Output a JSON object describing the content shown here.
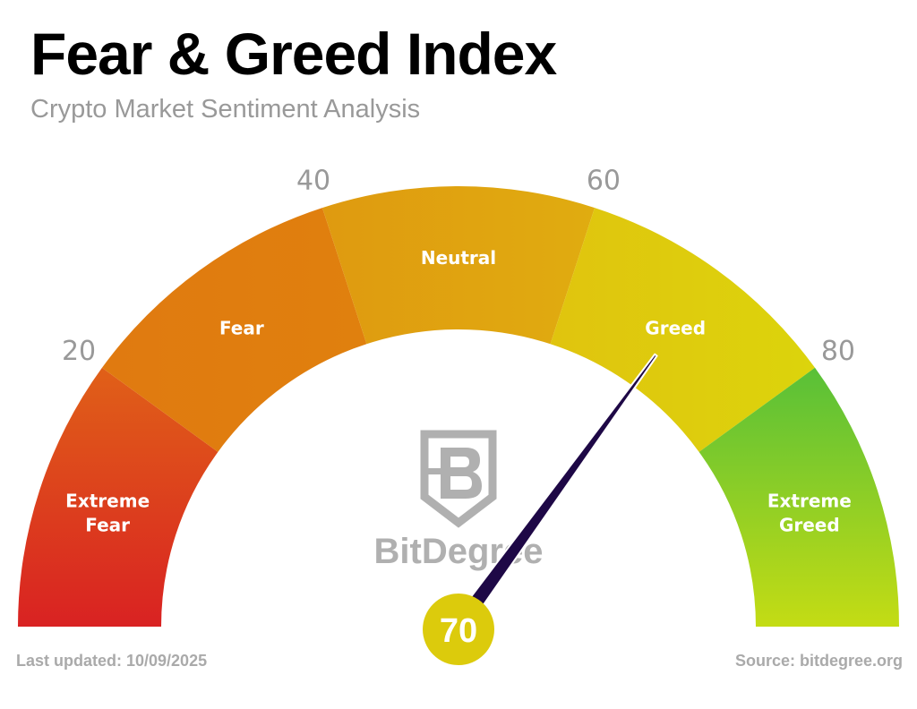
{
  "title": "Fear & Greed Index",
  "subtitle": "Crypto Market Sentiment Analysis",
  "footer": {
    "last_updated": "Last updated: 10/09/2025",
    "source": "Source: bitdegree.org"
  },
  "logo_text": "BitDegree",
  "chart_data": {
    "type": "gauge",
    "range": [
      0,
      100
    ],
    "value": 70,
    "value_label": "70",
    "ticks": [
      20,
      40,
      60,
      80
    ],
    "tick_labels": [
      "20",
      "40",
      "60",
      "80"
    ],
    "segments": [
      {
        "label": "Extreme Fear",
        "from": 0,
        "to": 20,
        "colors": [
          "#d92222",
          "#e06018"
        ]
      },
      {
        "label": "Fear",
        "from": 20,
        "to": 40,
        "colors": [
          "#e07a10",
          "#e0800e"
        ]
      },
      {
        "label": "Neutral",
        "from": 40,
        "to": 60,
        "colors": [
          "#df9a10",
          "#e0ac10"
        ]
      },
      {
        "label": "Greed",
        "from": 60,
        "to": 80,
        "colors": [
          "#e0c40e",
          "#dcd40c"
        ]
      },
      {
        "label": "Extreme Greed",
        "from": 80,
        "to": 100,
        "colors": [
          "#c4dc14",
          "#58c038"
        ]
      }
    ],
    "needle_color": "#1e0846",
    "badge_color": "#dccb0c"
  }
}
